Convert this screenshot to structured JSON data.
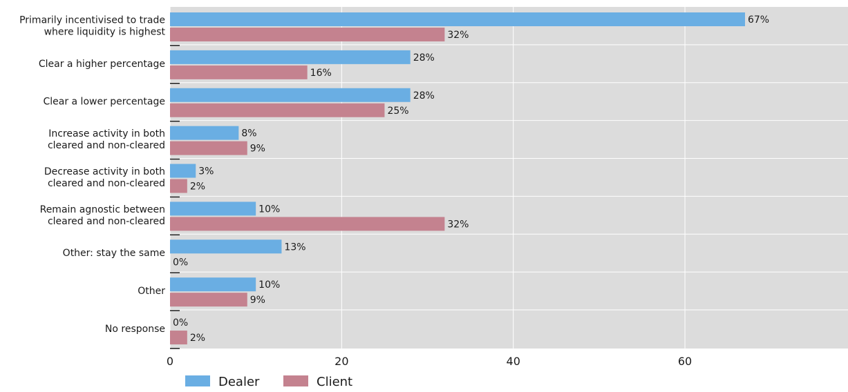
{
  "chart_data": {
    "type": "bar",
    "orientation": "horizontal",
    "categories": [
      [
        "Primarily incentivised to trade",
        "where liquidity is highest"
      ],
      [
        "Clear a higher percentage"
      ],
      [
        "Clear a lower percentage"
      ],
      [
        "Increase activity in both",
        "cleared and non-cleared"
      ],
      [
        "Decrease activity in both",
        "cleared and non-cleared"
      ],
      [
        "Remain agnostic between",
        "cleared and non-cleared"
      ],
      [
        "Other: stay the same"
      ],
      [
        "Other"
      ],
      [
        "No response"
      ]
    ],
    "series": [
      {
        "name": "Dealer",
        "color": "#6aaee3",
        "values": [
          67,
          28,
          28,
          8,
          3,
          10,
          13,
          10,
          0
        ],
        "labels": [
          "67%",
          "28%",
          "28%",
          "8%",
          "3%",
          "10%",
          "13%",
          "10%",
          "0%"
        ]
      },
      {
        "name": "Client",
        "color": "#c4828f",
        "values": [
          32,
          16,
          25,
          9,
          2,
          32,
          0,
          9,
          2
        ],
        "labels": [
          "32%",
          "16%",
          "25%",
          "9%",
          "2%",
          "32%",
          "0%",
          "9%",
          "2%"
        ]
      }
    ],
    "xlim": [
      0,
      79
    ],
    "xticks": [
      0,
      20,
      40,
      60
    ],
    "xtick_labels": [
      "0",
      "20",
      "40",
      "60"
    ],
    "grid": true,
    "legend_position": "bottom-left",
    "background_color": "#dcdcdc",
    "grid_color": "#ffffff"
  }
}
